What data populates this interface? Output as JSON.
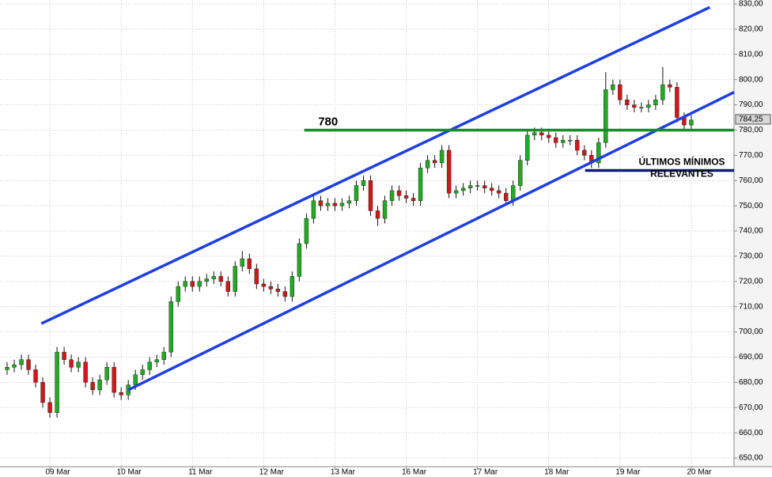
{
  "chart_data": {
    "type": "candlestick",
    "x": [
      -6,
      -5,
      -4,
      -3,
      -2,
      -1,
      0,
      1,
      2,
      3,
      4,
      5,
      6,
      7,
      8,
      9,
      10,
      11,
      12,
      13,
      14,
      15,
      16,
      17,
      18,
      19,
      20,
      21,
      22,
      23,
      24,
      25,
      26,
      27,
      28,
      29,
      30,
      31,
      32,
      33,
      34,
      35,
      36,
      37,
      38,
      39,
      40,
      41,
      42,
      43,
      44,
      45,
      46,
      47,
      48,
      49,
      50,
      51,
      52,
      53,
      54,
      55,
      56,
      57,
      58,
      59,
      60,
      61,
      62,
      63,
      64,
      65,
      66,
      67,
      68,
      69,
      70,
      71,
      72,
      73,
      74,
      75,
      76,
      77,
      78,
      79,
      80,
      81,
      82,
      83,
      84,
      85,
      86,
      87,
      88,
      89,
      90
    ],
    "open": [
      685,
      686,
      687,
      689,
      685,
      680,
      672,
      668,
      692,
      689,
      686,
      688,
      680,
      677,
      681,
      686,
      676,
      675,
      679,
      683,
      685,
      688,
      689,
      692,
      712,
      718,
      720,
      718,
      720,
      721,
      722,
      720,
      716,
      726,
      729,
      725,
      719,
      718,
      717,
      716,
      714,
      722,
      735,
      745,
      752,
      750,
      751,
      750,
      751,
      752,
      758,
      760,
      748,
      745,
      752,
      756,
      754,
      753,
      752,
      765,
      768,
      767,
      772,
      755,
      756,
      757,
      758,
      758,
      757,
      756,
      755,
      752,
      758,
      768,
      778,
      779,
      778,
      777,
      775,
      776,
      776,
      772,
      770,
      767,
      775,
      796,
      798,
      792,
      790,
      789,
      789,
      790,
      792,
      798,
      797,
      785,
      782
    ],
    "high": [
      688,
      689,
      691,
      691,
      687,
      682,
      674,
      694,
      694,
      691,
      690,
      690,
      682,
      683,
      688,
      688,
      678,
      681,
      685,
      687,
      690,
      691,
      694,
      714,
      720,
      722,
      722,
      722,
      723,
      724,
      724,
      722,
      728,
      732,
      731,
      727,
      721,
      720,
      719,
      718,
      724,
      737,
      747,
      754,
      754,
      753,
      753,
      753,
      754,
      760,
      762,
      762,
      750,
      754,
      758,
      758,
      756,
      755,
      767,
      770,
      770,
      774,
      774,
      758,
      759,
      760,
      760,
      760,
      759,
      758,
      757,
      760,
      770,
      780,
      781,
      781,
      780,
      779,
      778,
      778,
      778,
      774,
      772,
      777,
      803,
      800,
      800,
      794,
      792,
      791,
      792,
      794,
      805,
      800,
      799,
      787,
      786
    ],
    "low": [
      683,
      684,
      685,
      683,
      678,
      670,
      666,
      666,
      687,
      684,
      684,
      678,
      675,
      675,
      679,
      674,
      673,
      673,
      677,
      681,
      683,
      686,
      687,
      690,
      710,
      716,
      716,
      716,
      718,
      719,
      718,
      714,
      714,
      724,
      723,
      717,
      716,
      715,
      714,
      712,
      712,
      720,
      733,
      743,
      748,
      748,
      748,
      748,
      749,
      750,
      756,
      746,
      742,
      743,
      750,
      752,
      751,
      750,
      750,
      763,
      765,
      765,
      753,
      753,
      754,
      755,
      756,
      755,
      754,
      753,
      750,
      750,
      756,
      766,
      776,
      776,
      775,
      773,
      773,
      774,
      770,
      768,
      765,
      765,
      773,
      794,
      790,
      788,
      787,
      787,
      787,
      788,
      790,
      795,
      783,
      780,
      780
    ],
    "close": [
      686,
      687,
      689,
      685,
      680,
      672,
      668,
      692,
      689,
      686,
      688,
      680,
      677,
      681,
      686,
      676,
      675,
      679,
      683,
      685,
      688,
      689,
      692,
      712,
      718,
      720,
      718,
      720,
      721,
      722,
      720,
      716,
      726,
      729,
      725,
      719,
      718,
      717,
      716,
      714,
      722,
      735,
      745,
      752,
      750,
      751,
      750,
      751,
      752,
      758,
      760,
      748,
      745,
      752,
      756,
      754,
      753,
      752,
      765,
      768,
      767,
      772,
      755,
      756,
      757,
      758,
      758,
      757,
      756,
      755,
      752,
      758,
      768,
      778,
      779,
      778,
      777,
      775,
      776,
      776,
      772,
      770,
      767,
      775,
      796,
      798,
      792,
      790,
      789,
      789,
      790,
      792,
      798,
      797,
      785,
      782,
      784
    ],
    "up_color": "#22aa22",
    "down_color": "#cc1a1a",
    "xlim": [
      -7,
      96
    ],
    "ylim": [
      650,
      830
    ],
    "xticks": [
      {
        "value": 0,
        "label": "09 Mar"
      },
      {
        "value": 10,
        "label": "10 Mar"
      },
      {
        "value": 20,
        "label": "11 Mar"
      },
      {
        "value": 30,
        "label": "12 Mar"
      },
      {
        "value": 40,
        "label": "13 Mar"
      },
      {
        "value": 50,
        "label": "16 Mar"
      },
      {
        "value": 60,
        "label": "17 Mar"
      },
      {
        "value": 70,
        "label": "18 Mar"
      },
      {
        "value": 80,
        "label": "19 Mar"
      },
      {
        "value": 90,
        "label": "20 Mar"
      }
    ],
    "yticks": [
      {
        "value": 650,
        "label": "650,00"
      },
      {
        "value": 660,
        "label": "660,00"
      },
      {
        "value": 670,
        "label": "670,00"
      },
      {
        "value": 680,
        "label": "680,00"
      },
      {
        "value": 690,
        "label": "690,00"
      },
      {
        "value": 700,
        "label": "700,00"
      },
      {
        "value": 710,
        "label": "710,00"
      },
      {
        "value": 720,
        "label": "720,00"
      },
      {
        "value": 730,
        "label": "730,00"
      },
      {
        "value": 740,
        "label": "740,00"
      },
      {
        "value": 750,
        "label": "750,00"
      },
      {
        "value": 760,
        "label": "760,00"
      },
      {
        "value": 770,
        "label": "770,00"
      },
      {
        "value": 780,
        "label": "780,00"
      },
      {
        "value": 790,
        "label": "790,00"
      },
      {
        "value": 800,
        "label": "800,00"
      },
      {
        "value": 810,
        "label": "810,00"
      },
      {
        "value": 820,
        "label": "820,00"
      },
      {
        "value": 830,
        "label": "830,00"
      }
    ],
    "grid": true,
    "last_price": {
      "value": 784.25,
      "label": "784,25"
    },
    "trendlines": [
      {
        "color": "#1f3fe0",
        "x": [
          -1.2,
          92.6
        ],
        "y": [
          703.3,
          828.7
        ]
      },
      {
        "color": "#1f3fe0",
        "x": [
          11,
          96
        ],
        "y": [
          677,
          795
        ]
      },
      {
        "color": "#1a8a2a",
        "x": [
          35.7,
          96
        ],
        "y": [
          780,
          780
        ],
        "label": "780"
      },
      {
        "color": "#0d1f70",
        "x": [
          75.1,
          96
        ],
        "y": [
          764,
          764
        ],
        "label": "ÚLTIMOS MÍNIMOS RELEVANTES"
      }
    ]
  }
}
